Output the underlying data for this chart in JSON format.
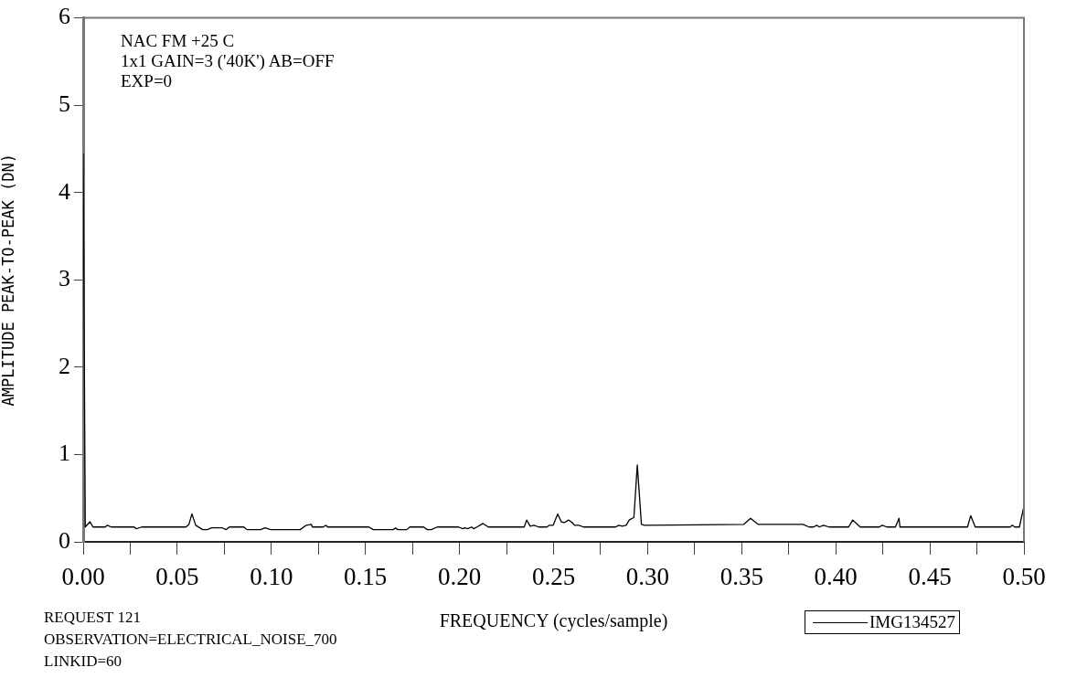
{
  "chart_data": {
    "type": "line",
    "xlabel": "FREQUENCY (cycles/sample)",
    "ylabel": "AMPLITUDE PEAK-TO-PEAK (DN)",
    "annotations": [
      "NAC FM +25 C",
      "1x1 GAIN=3 ('40K') AB=OFF",
      "EXP=0",
      "REQUEST 121",
      "OBSERVATION=ELECTRICAL_NOISE_700",
      "LINKID=60"
    ],
    "xlim": [
      0,
      0.5
    ],
    "ylim": [
      0,
      6
    ],
    "xticks": [
      {
        "value": 0,
        "label": "0.00"
      },
      {
        "value": 0.025,
        "label": null
      },
      {
        "value": 0.05,
        "label": "0.05"
      },
      {
        "value": 0.075,
        "label": null
      },
      {
        "value": 0.1,
        "label": "0.10"
      },
      {
        "value": 0.125,
        "label": null
      },
      {
        "value": 0.15,
        "label": "0.15"
      },
      {
        "value": 0.175,
        "label": null
      },
      {
        "value": 0.2,
        "label": "0.20"
      },
      {
        "value": 0.225,
        "label": null
      },
      {
        "value": 0.25,
        "label": "0.25"
      },
      {
        "value": 0.275,
        "label": null
      },
      {
        "value": 0.3,
        "label": "0.30"
      },
      {
        "value": 0.325,
        "label": null
      },
      {
        "value": 0.35,
        "label": "0.35"
      },
      {
        "value": 0.375,
        "label": null
      },
      {
        "value": 0.4,
        "label": "0.40"
      },
      {
        "value": 0.425,
        "label": null
      },
      {
        "value": 0.45,
        "label": "0.45"
      },
      {
        "value": 0.475,
        "label": null
      },
      {
        "value": 0.5,
        "label": "0.50"
      }
    ],
    "yticks": [
      0,
      1,
      2,
      3,
      4,
      5,
      6
    ],
    "grid": false,
    "legend": "bottom right",
    "marker": "none",
    "line_style": "solid",
    "series": [
      {
        "name": "IMG134527",
        "color": "#000000",
        "x": [
          0,
          0.0011,
          0.0036,
          0.0052,
          0.0117,
          0.0128,
          0.0149,
          0.0271,
          0.0282,
          0.0311,
          0.0546,
          0.0562,
          0.0578,
          0.0598,
          0.0635,
          0.0659,
          0.0683,
          0.074,
          0.0759,
          0.0777,
          0.0854,
          0.087,
          0.0943,
          0.0967,
          0.0996,
          0.1153,
          0.1186,
          0.1213,
          0.1218,
          0.1275,
          0.1291,
          0.1299,
          0.1518,
          0.1542,
          0.1647,
          0.166,
          0.1672,
          0.172,
          0.1736,
          0.1809,
          0.1829,
          0.185,
          0.1882,
          0.1995,
          0.2017,
          0.2028,
          0.2044,
          0.2065,
          0.2076,
          0.2093,
          0.2125,
          0.2153,
          0.2344,
          0.2357,
          0.2376,
          0.2396,
          0.2421,
          0.2465,
          0.2478,
          0.2498,
          0.2522,
          0.2541,
          0.2557,
          0.2579,
          0.26,
          0.2611,
          0.2635,
          0.2659,
          0.283,
          0.2846,
          0.2865,
          0.2886,
          0.2902,
          0.2927,
          0.2945,
          0.2967,
          0.2983,
          0.351,
          0.3547,
          0.3588,
          0.3826,
          0.3858,
          0.3882,
          0.3899,
          0.3912,
          0.3934,
          0.3964,
          0.4068,
          0.409,
          0.413,
          0.4231,
          0.4247,
          0.4271,
          0.4317,
          0.4336,
          0.4341,
          0.47,
          0.4717,
          0.4741,
          0.4927,
          0.4938,
          0.4951,
          0.4976,
          0.5
        ],
        "values": [
          4.45,
          0.17,
          0.23,
          0.17,
          0.17,
          0.19,
          0.17,
          0.17,
          0.15,
          0.17,
          0.17,
          0.2,
          0.32,
          0.19,
          0.14,
          0.14,
          0.16,
          0.16,
          0.14,
          0.17,
          0.17,
          0.14,
          0.14,
          0.16,
          0.14,
          0.14,
          0.19,
          0.2,
          0.17,
          0.17,
          0.19,
          0.17,
          0.17,
          0.14,
          0.14,
          0.16,
          0.14,
          0.14,
          0.17,
          0.17,
          0.14,
          0.14,
          0.17,
          0.17,
          0.15,
          0.16,
          0.15,
          0.17,
          0.15,
          0.17,
          0.21,
          0.17,
          0.17,
          0.25,
          0.18,
          0.19,
          0.17,
          0.17,
          0.19,
          0.19,
          0.32,
          0.23,
          0.22,
          0.25,
          0.22,
          0.19,
          0.19,
          0.17,
          0.17,
          0.19,
          0.18,
          0.19,
          0.25,
          0.28,
          0.88,
          0.2,
          0.19,
          0.2,
          0.27,
          0.2,
          0.2,
          0.17,
          0.17,
          0.19,
          0.17,
          0.19,
          0.17,
          0.17,
          0.25,
          0.17,
          0.17,
          0.19,
          0.17,
          0.17,
          0.27,
          0.17,
          0.17,
          0.3,
          0.17,
          0.17,
          0.19,
          0.17,
          0.17,
          0.41
        ]
      }
    ]
  }
}
